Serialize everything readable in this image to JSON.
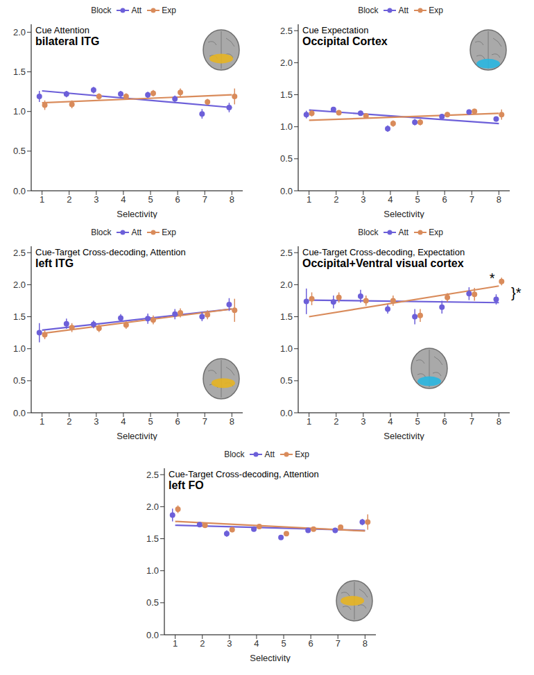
{
  "chart_data": [
    {
      "type": "scatter",
      "title": "Cue Attention",
      "subtitle": "bilateral ITG",
      "x_label": "Selectivity",
      "legend_title": "Block",
      "legend": "top",
      "grid": false,
      "xlim": [
        0.6,
        8.4
      ],
      "xticks": [
        1,
        2,
        3,
        4,
        5,
        6,
        7,
        8
      ],
      "ylim": [
        0,
        2.1
      ],
      "yticks": [
        {
          "value": 0,
          "label": "0.0"
        },
        {
          "value": 0.5,
          "label": "0.5"
        },
        {
          "value": 1,
          "label": "1.0"
        },
        {
          "value": 1.5,
          "label": "1.5"
        },
        {
          "value": 2,
          "label": "2.0"
        }
      ],
      "series": [
        {
          "name": "Att",
          "color": "#6c5fd9",
          "marker": "circle",
          "x": [
            0.9,
            1.9,
            2.9,
            3.9,
            4.9,
            5.9,
            6.9,
            7.9
          ],
          "values": [
            1.19,
            1.22,
            1.27,
            1.22,
            1.21,
            1.16,
            0.97,
            1.05
          ],
          "errors": [
            0.07,
            0.04,
            0.04,
            0.04,
            0.04,
            0.04,
            0.06,
            0.06
          ],
          "fit": {
            "x": [
              1,
              8
            ],
            "values": [
              1.26,
              1.05
            ]
          }
        },
        {
          "name": "Exp",
          "color": "#d98b5b",
          "marker": "circle",
          "x": [
            1.1,
            2.1,
            3.1,
            4.1,
            5.1,
            6.1,
            7.1,
            8.1
          ],
          "values": [
            1.08,
            1.09,
            1.19,
            1.19,
            1.23,
            1.24,
            1.12,
            1.19
          ],
          "errors": [
            0.06,
            0.05,
            0.04,
            0.04,
            0.04,
            0.05,
            0.04,
            0.1
          ],
          "fit": {
            "x": [
              1,
              8
            ],
            "values": [
              1.11,
              1.21
            ]
          }
        }
      ],
      "annotations": []
    },
    {
      "type": "scatter",
      "title": "Cue Expectation",
      "subtitle": "Occipital Cortex",
      "x_label": "Selectivity",
      "legend_title": "Block",
      "legend": "top",
      "grid": false,
      "xlim": [
        0.6,
        8.4
      ],
      "xticks": [
        1,
        2,
        3,
        4,
        5,
        6,
        7,
        8
      ],
      "ylim": [
        0,
        2.6
      ],
      "yticks": [
        {
          "value": 0,
          "label": "0.0"
        },
        {
          "value": 0.5,
          "label": "0.5"
        },
        {
          "value": 1,
          "label": "1.0"
        },
        {
          "value": 1.5,
          "label": "1.5"
        },
        {
          "value": 2,
          "label": "2.0"
        },
        {
          "value": 2.5,
          "label": "2.5"
        }
      ],
      "series": [
        {
          "name": "Att",
          "color": "#6c5fd9",
          "marker": "circle",
          "x": [
            0.9,
            1.9,
            2.9,
            3.9,
            4.9,
            5.9,
            6.9,
            7.9
          ],
          "values": [
            1.19,
            1.27,
            1.21,
            0.97,
            1.07,
            1.16,
            1.23,
            1.12
          ],
          "errors": [
            0.06,
            0.04,
            0.04,
            0.05,
            0.05,
            0.04,
            0.04,
            0.04
          ],
          "fit": {
            "x": [
              1,
              8
            ],
            "values": [
              1.26,
              1.05
            ]
          }
        },
        {
          "name": "Exp",
          "color": "#d98b5b",
          "marker": "circle",
          "x": [
            1.1,
            2.1,
            3.1,
            4.1,
            5.1,
            6.1,
            7.1,
            8.1
          ],
          "values": [
            1.21,
            1.22,
            1.17,
            1.05,
            1.07,
            1.19,
            1.24,
            1.19
          ],
          "errors": [
            0.05,
            0.04,
            0.04,
            0.05,
            0.05,
            0.04,
            0.04,
            0.08
          ],
          "fit": {
            "x": [
              1,
              8
            ],
            "values": [
              1.1,
              1.21
            ]
          }
        }
      ],
      "annotations": []
    },
    {
      "type": "scatter",
      "title": "Cue-Target Cross-decoding, Attention",
      "subtitle": "left ITG",
      "x_label": "Selectivity",
      "legend_title": "Block",
      "legend": "top",
      "grid": false,
      "xlim": [
        0.6,
        8.4
      ],
      "xticks": [
        1,
        2,
        3,
        4,
        5,
        6,
        7,
        8
      ],
      "ylim": [
        0,
        2.6
      ],
      "yticks": [
        {
          "value": 0,
          "label": "0.0"
        },
        {
          "value": 0.5,
          "label": "0.5"
        },
        {
          "value": 1,
          "label": "1.0"
        },
        {
          "value": 1.5,
          "label": "1.5"
        },
        {
          "value": 2,
          "label": "2.0"
        },
        {
          "value": 2.5,
          "label": "2.5"
        }
      ],
      "series": [
        {
          "name": "Att",
          "color": "#6c5fd9",
          "marker": "circle",
          "x": [
            0.9,
            1.9,
            2.9,
            3.9,
            4.9,
            5.9,
            6.9,
            7.9
          ],
          "values": [
            1.25,
            1.39,
            1.38,
            1.48,
            1.47,
            1.54,
            1.5,
            1.69
          ],
          "errors": [
            0.15,
            0.08,
            0.06,
            0.06,
            0.08,
            0.08,
            0.07,
            0.1
          ],
          "fit": {
            "x": [
              1,
              8
            ],
            "values": [
              1.29,
              1.62
            ]
          }
        },
        {
          "name": "Exp",
          "color": "#d98b5b",
          "marker": "circle",
          "x": [
            1.1,
            2.1,
            3.1,
            4.1,
            5.1,
            6.1,
            7.1,
            8.1
          ],
          "values": [
            1.22,
            1.33,
            1.32,
            1.37,
            1.45,
            1.56,
            1.53,
            1.6
          ],
          "errors": [
            0.07,
            0.07,
            0.06,
            0.06,
            0.07,
            0.07,
            0.07,
            0.18
          ],
          "fit": {
            "x": [
              1,
              8
            ],
            "values": [
              1.24,
              1.62
            ]
          }
        }
      ],
      "annotations": []
    },
    {
      "type": "scatter",
      "title": "Cue-Target Cross-decoding, Expectation",
      "subtitle": "Occipital+Ventral visual cortex",
      "x_label": "Selectivity",
      "legend_title": "Block",
      "legend": "top",
      "grid": false,
      "xlim": [
        0.6,
        8.4
      ],
      "xticks": [
        1,
        2,
        3,
        4,
        5,
        6,
        7,
        8
      ],
      "ylim": [
        0,
        2.6
      ],
      "yticks": [
        {
          "value": 0,
          "label": "0.0"
        },
        {
          "value": 0.5,
          "label": "0.5"
        },
        {
          "value": 1,
          "label": "1.0"
        },
        {
          "value": 1.5,
          "label": "1.5"
        },
        {
          "value": 2,
          "label": "2.0"
        },
        {
          "value": 2.5,
          "label": "2.5"
        }
      ],
      "series": [
        {
          "name": "Att",
          "color": "#6c5fd9",
          "marker": "circle",
          "x": [
            0.9,
            1.9,
            2.9,
            3.9,
            4.9,
            5.9,
            6.9,
            7.9
          ],
          "values": [
            1.74,
            1.73,
            1.82,
            1.62,
            1.5,
            1.65,
            1.86,
            1.77
          ],
          "errors": [
            0.2,
            0.1,
            0.1,
            0.07,
            0.12,
            0.1,
            0.1,
            0.08
          ],
          "fit": {
            "x": [
              1,
              8
            ],
            "values": [
              1.76,
              1.72
            ]
          }
        },
        {
          "name": "Exp",
          "color": "#d98b5b",
          "marker": "circle",
          "x": [
            1.1,
            2.1,
            3.1,
            4.1,
            5.1,
            6.1,
            7.1,
            8.1
          ],
          "values": [
            1.78,
            1.8,
            1.75,
            1.75,
            1.52,
            1.8,
            1.85,
            2.05
          ],
          "errors": [
            0.1,
            0.08,
            0.08,
            0.08,
            0.1,
            0.07,
            0.1,
            0.06
          ],
          "fit": {
            "x": [
              1,
              8
            ],
            "values": [
              1.5,
              1.98
            ]
          }
        }
      ],
      "annotations": [
        {
          "text": "*",
          "x": 7.75,
          "y": 2.1
        },
        {
          "text": "}*",
          "x": 8.4,
          "y": 1.88
        }
      ]
    },
    {
      "type": "scatter",
      "title": "Cue-Target Cross-decoding, Attention",
      "subtitle": "left FO",
      "x_label": "Selectivity",
      "legend_title": "Block",
      "legend": "top",
      "grid": false,
      "xlim": [
        0.6,
        8.4
      ],
      "xticks": [
        1,
        2,
        3,
        4,
        5,
        6,
        7,
        8
      ],
      "ylim": [
        0,
        2.6
      ],
      "yticks": [
        {
          "value": 0,
          "label": "0.0"
        },
        {
          "value": 0.5,
          "label": "0.5"
        },
        {
          "value": 1,
          "label": "1.0"
        },
        {
          "value": 1.5,
          "label": "1.5"
        },
        {
          "value": 2,
          "label": "2.0"
        },
        {
          "value": 2.5,
          "label": "2.5"
        }
      ],
      "series": [
        {
          "name": "Att",
          "color": "#6c5fd9",
          "marker": "circle",
          "x": [
            0.9,
            1.9,
            2.9,
            3.9,
            4.9,
            5.9,
            6.9,
            7.9
          ],
          "values": [
            1.87,
            1.72,
            1.58,
            1.65,
            1.52,
            1.63,
            1.63,
            1.76
          ],
          "errors": [
            0.1,
            0.03,
            0.05,
            0.03,
            0.03,
            0.03,
            0.04,
            0.05
          ],
          "fit": {
            "x": [
              1,
              8
            ],
            "values": [
              1.71,
              1.63
            ]
          }
        },
        {
          "name": "Exp",
          "color": "#d98b5b",
          "marker": "circle",
          "x": [
            1.1,
            2.1,
            3.1,
            4.1,
            5.1,
            6.1,
            7.1,
            8.1
          ],
          "values": [
            1.96,
            1.71,
            1.64,
            1.69,
            1.58,
            1.65,
            1.68,
            1.76
          ],
          "errors": [
            0.06,
            0.03,
            0.04,
            0.03,
            0.03,
            0.03,
            0.04,
            0.12
          ],
          "fit": {
            "x": [
              1,
              8
            ],
            "values": [
              1.77,
              1.62
            ]
          }
        }
      ],
      "annotations": []
    }
  ]
}
